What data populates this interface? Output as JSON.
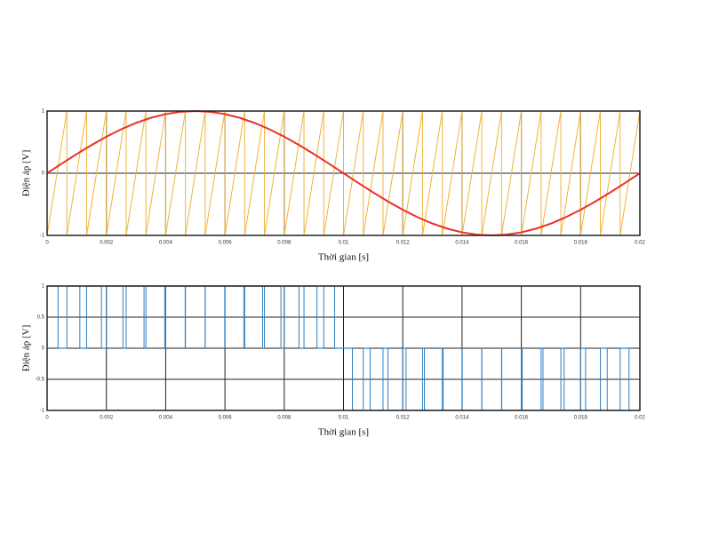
{
  "chart_data": [
    {
      "type": "line",
      "xlabel": "Thời gian [s]",
      "ylabel": "Điện áp [V]",
      "xlim": [
        0,
        0.02
      ],
      "xticks": [
        0,
        0.002,
        0.004,
        0.006,
        0.008,
        0.01,
        0.012,
        0.014,
        0.016,
        0.018,
        0.02
      ],
      "ylim": [
        -1,
        1
      ],
      "yticks": [
        -1,
        0,
        1
      ],
      "grid": true,
      "series": [
        {
          "color": "#f0b43c",
          "x": [
            0,
            0.000667,
            0.000667,
            0.001333,
            0.001333,
            0.002,
            0.002,
            0.002667,
            0.002667,
            0.003333,
            0.003333,
            0.004,
            0.004,
            0.004667,
            0.004667,
            0.005333,
            0.005333,
            0.006,
            0.006,
            0.006667,
            0.006667,
            0.007333,
            0.007333,
            0.008,
            0.008,
            0.008667,
            0.008667,
            0.009333,
            0.009333,
            0.01,
            0.01,
            0.010667,
            0.010667,
            0.011333,
            0.011333,
            0.012,
            0.012,
            0.012667,
            0.012667,
            0.013333,
            0.013333,
            0.014,
            0.014,
            0.014667,
            0.014667,
            0.015333,
            0.015333,
            0.016,
            0.016,
            0.016667,
            0.016667,
            0.017333,
            0.017333,
            0.018,
            0.018,
            0.018667,
            0.018667,
            0.019333,
            0.019333,
            0.02
          ],
          "values": [
            -1,
            1,
            -1,
            1,
            -1,
            1,
            -1,
            1,
            -1,
            1,
            -1,
            1,
            -1,
            1,
            -1,
            1,
            -1,
            1,
            -1,
            1,
            -1,
            1,
            -1,
            1,
            -1,
            1,
            -1,
            1,
            -1,
            1,
            -1,
            1,
            -1,
            1,
            -1,
            1,
            -1,
            1,
            -1,
            1,
            -1,
            1,
            -1,
            1,
            -1,
            1,
            -1,
            1,
            -1,
            1,
            -1,
            1,
            -1,
            1,
            -1,
            1,
            -1,
            1,
            -1,
            1
          ]
        },
        {
          "color": "#e8322a",
          "x": [
            0,
            0.0005,
            0.001,
            0.0015,
            0.002,
            0.0025,
            0.003,
            0.0035,
            0.004,
            0.0045,
            0.005,
            0.0055,
            0.006,
            0.0065,
            0.007,
            0.0075,
            0.008,
            0.0085,
            0.009,
            0.0095,
            0.01,
            0.0105,
            0.011,
            0.0115,
            0.012,
            0.0125,
            0.013,
            0.0135,
            0.014,
            0.0145,
            0.015,
            0.0155,
            0.016,
            0.0165,
            0.017,
            0.0175,
            0.018,
            0.0185,
            0.019,
            0.0195,
            0.02
          ],
          "values": [
            0,
            0.156,
            0.309,
            0.454,
            0.588,
            0.707,
            0.809,
            0.891,
            0.951,
            0.988,
            1,
            0.988,
            0.951,
            0.891,
            0.809,
            0.707,
            0.588,
            0.454,
            0.309,
            0.156,
            0,
            -0.156,
            -0.309,
            -0.454,
            -0.588,
            -0.707,
            -0.809,
            -0.891,
            -0.951,
            -0.988,
            -1,
            -0.988,
            -0.951,
            -0.891,
            -0.809,
            -0.707,
            -0.588,
            -0.454,
            -0.309,
            -0.156,
            0
          ]
        }
      ]
    },
    {
      "type": "step",
      "xlabel": "Thời gian [s]",
      "ylabel": "Điện áp [V]",
      "xlim": [
        0,
        0.02
      ],
      "xticks": [
        0,
        0.002,
        0.004,
        0.006,
        0.008,
        0.01,
        0.012,
        0.014,
        0.016,
        0.018,
        0.02
      ],
      "ylim": [
        -1,
        1
      ],
      "yticks": [
        -1,
        -0.5,
        0,
        0.5,
        1
      ],
      "grid": true,
      "series": [
        {
          "color": "#2f7fc0",
          "x": [
            0,
            0.000368,
            0.000667,
            0.001104,
            0.001333,
            0.001833,
            0.002,
            0.002557,
            0.002667,
            0.00327,
            0.003333,
            0.003971,
            0.004,
            0.004659,
            0.004667,
            0.005333,
            0.005333,
            0.005992,
            0.006,
            0.006638,
            0.006667,
            0.00727,
            0.007333,
            0.00789,
            0.008,
            0.0085,
            0.008667,
            0.009104,
            0.009333,
            0.009701,
            0.01,
            0.010299,
            0.010667,
            0.010897,
            0.011333,
            0.0115,
            0.012,
            0.01211,
            0.012667,
            0.01273,
            0.013333,
            0.013362,
            0.014,
            0.014007,
            0.014667,
            0.014667,
            0.015333,
            0.01534,
            0.016,
            0.016029,
            0.016667,
            0.01673,
            0.017333,
            0.017443,
            0.018,
            0.018167,
            0.018667,
            0.018897,
            0.019333,
            0.019632,
            0.02
          ],
          "values": [
            1,
            0,
            1,
            0,
            1,
            0,
            1,
            0,
            1,
            0,
            1,
            0,
            1,
            0,
            1,
            0,
            1,
            0,
            1,
            0,
            1,
            0,
            1,
            0,
            1,
            0,
            1,
            0,
            1,
            0,
            0,
            -1,
            0,
            -1,
            0,
            -1,
            0,
            -1,
            0,
            -1,
            0,
            -1,
            0,
            -1,
            0,
            -1,
            0,
            -1,
            0,
            -1,
            0,
            -1,
            0,
            -1,
            0,
            -1,
            0,
            -1,
            0,
            -1,
            -1
          ]
        }
      ]
    }
  ]
}
